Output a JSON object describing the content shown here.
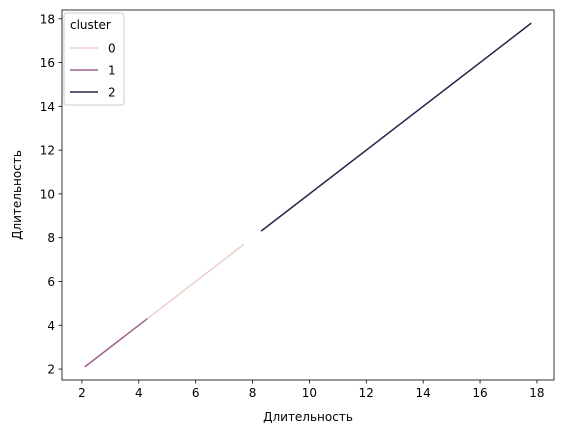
{
  "chart_data": {
    "type": "line",
    "xlabel": "Длительность",
    "ylabel": "Длительность",
    "xlim": [
      1.3,
      18.6
    ],
    "ylim": [
      1.5,
      18.4
    ],
    "xticks": [
      2,
      4,
      6,
      8,
      10,
      12,
      14,
      16,
      18
    ],
    "yticks": [
      2,
      4,
      6,
      8,
      10,
      12,
      14,
      16,
      18
    ],
    "grid": false,
    "legend": {
      "title": "cluster",
      "placement": "top-left"
    },
    "series": [
      {
        "name": "0",
        "color": "#ebcfc8",
        "x": [
          4.3,
          7.7
        ],
        "y": [
          4.3,
          7.7
        ]
      },
      {
        "name": "1",
        "color": "#a0608b",
        "x": [
          2.1,
          4.3
        ],
        "y": [
          2.1,
          4.3
        ]
      },
      {
        "name": "2",
        "color": "#2b2146",
        "x": [
          8.3,
          17.8
        ],
        "y": [
          8.3,
          17.8
        ]
      }
    ]
  }
}
